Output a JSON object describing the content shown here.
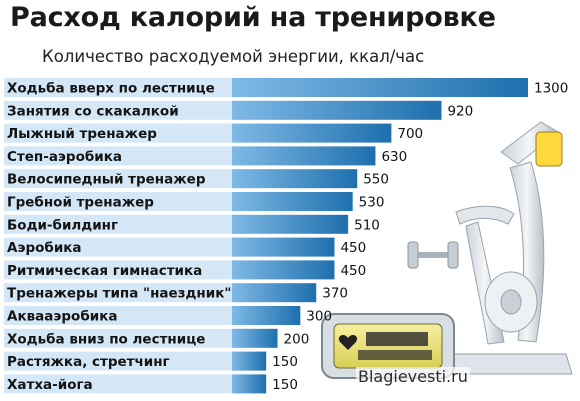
{
  "header": {
    "title": "Расход калорий на тренировке",
    "subtitle": "Количество расходуемой энергии, ккал/час"
  },
  "credit": "Blagievesti.ru",
  "colors": {
    "bar_light": "#7fb9e6",
    "bar_dark": "#1e6fad",
    "label_band": "#d4e7f6"
  },
  "chart_data": {
    "type": "bar",
    "orientation": "horizontal",
    "title": "Расход калорий на тренировке",
    "subtitle": "Количество расходуемой энергии, ккал/час",
    "categories": [
      "Ходьба вверх по лестнице",
      "Занятия со скакалкой",
      "Лыжный тренажер",
      "Степ-аэробика",
      "Велосипедный тренажер",
      "Гребной тренажер",
      "Боди-билдинг",
      "Аэробика",
      "Ритмическая гимнастика",
      "Тренажеры типа \"наездник\"",
      "Аквааэробика",
      "Ходьба вниз по лестнице",
      "Растяжка, стретчинг",
      "Хатха-йога"
    ],
    "values": [
      1300,
      920,
      700,
      630,
      550,
      530,
      510,
      450,
      450,
      370,
      300,
      200,
      150,
      150
    ],
    "value_labels": [
      "1300",
      "920",
      "700",
      "630",
      "550",
      "530",
      "510",
      "450",
      "450",
      "370",
      "300",
      "200",
      "150",
      "150"
    ],
    "grid": false,
    "legend": "none"
  }
}
